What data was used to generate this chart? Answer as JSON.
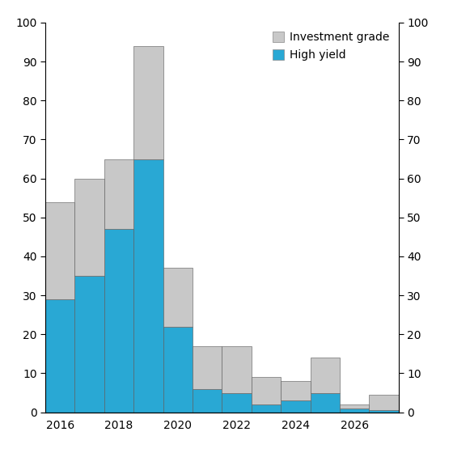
{
  "years": [
    2016,
    2017,
    2018,
    2019,
    2020,
    2021,
    2022,
    2023,
    2024,
    2025,
    2026,
    2027
  ],
  "high_yield": [
    29,
    35,
    47,
    65,
    22,
    6,
    5,
    2,
    3,
    5,
    1,
    0.5
  ],
  "investment_grade": [
    25,
    25,
    18,
    29,
    15,
    11,
    12,
    7,
    5,
    9,
    1,
    4
  ],
  "hy_color": "#29a8d4",
  "ig_color": "#c8c8c8",
  "bar_edge_color": "#555555",
  "bar_edge_width": 0.4,
  "ylim": [
    0,
    100
  ],
  "yticks": [
    0,
    10,
    20,
    30,
    40,
    50,
    60,
    70,
    80,
    90,
    100
  ],
  "xtick_labels": [
    "2016",
    "2018",
    "2020",
    "2022",
    "2024",
    "2026"
  ],
  "xtick_positions": [
    2016,
    2018,
    2020,
    2022,
    2024,
    2026
  ],
  "legend_ig": "Investment grade",
  "legend_hy": "High yield",
  "bar_width": 1.0,
  "xlim": [
    2015.5,
    2027.5
  ]
}
